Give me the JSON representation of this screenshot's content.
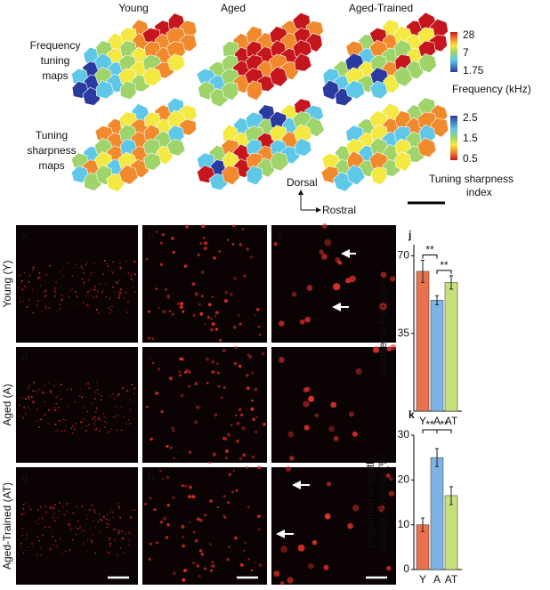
{
  "maps": {
    "columns": [
      "Young",
      "Aged",
      "Aged-Trained"
    ],
    "rows": [
      [
        "Frequency",
        "tuning",
        "maps"
      ],
      [
        "Tuning",
        "sharpness",
        "maps"
      ]
    ],
    "frequency_bar": {
      "labels": [
        "28",
        "7",
        "1.75"
      ],
      "title": "Frequency (kHz)"
    },
    "sharpness_bar": {
      "labels": [
        "2.5",
        "1.5",
        "0.5"
      ],
      "title": [
        "Tuning sharpness",
        "index"
      ]
    },
    "orientation": {
      "up": "Dorsal",
      "right": "Rostral"
    }
  },
  "histology": {
    "row_labels": [
      "Young (Y)",
      "Aged (A)",
      "Aged-Trained (AT)"
    ],
    "panels": [
      "a",
      "b",
      "c",
      "d",
      "e",
      "f",
      "g",
      "h",
      "i"
    ]
  },
  "chart_data": [
    {
      "type": "bar",
      "panel": "j",
      "ylabel": "Number of PV+ cells",
      "categories": [
        "Y",
        "A",
        "AT"
      ],
      "values": [
        63,
        50,
        58
      ],
      "errors": [
        5,
        2,
        3
      ],
      "colors": [
        "#e8714f",
        "#7fb3e6",
        "#c5e07a"
      ],
      "ylim": [
        0,
        75
      ],
      "yticks": [
        35,
        70
      ],
      "annotations": [
        "**",
        "**"
      ]
    },
    {
      "type": "bar",
      "panel": "k",
      "ylabel": [
        "Proportion of lightly",
        "stained PV+cells (%)"
      ],
      "categories": [
        "Y",
        "A",
        "AT"
      ],
      "values": [
        10,
        25,
        16.5
      ],
      "errors": [
        1.5,
        2,
        2
      ],
      "colors": [
        "#e8714f",
        "#7fb3e6",
        "#c5e07a"
      ],
      "ylim": [
        0,
        30
      ],
      "yticks": [
        0,
        10,
        20,
        30
      ],
      "annotations": [
        "**",
        "**"
      ]
    }
  ]
}
